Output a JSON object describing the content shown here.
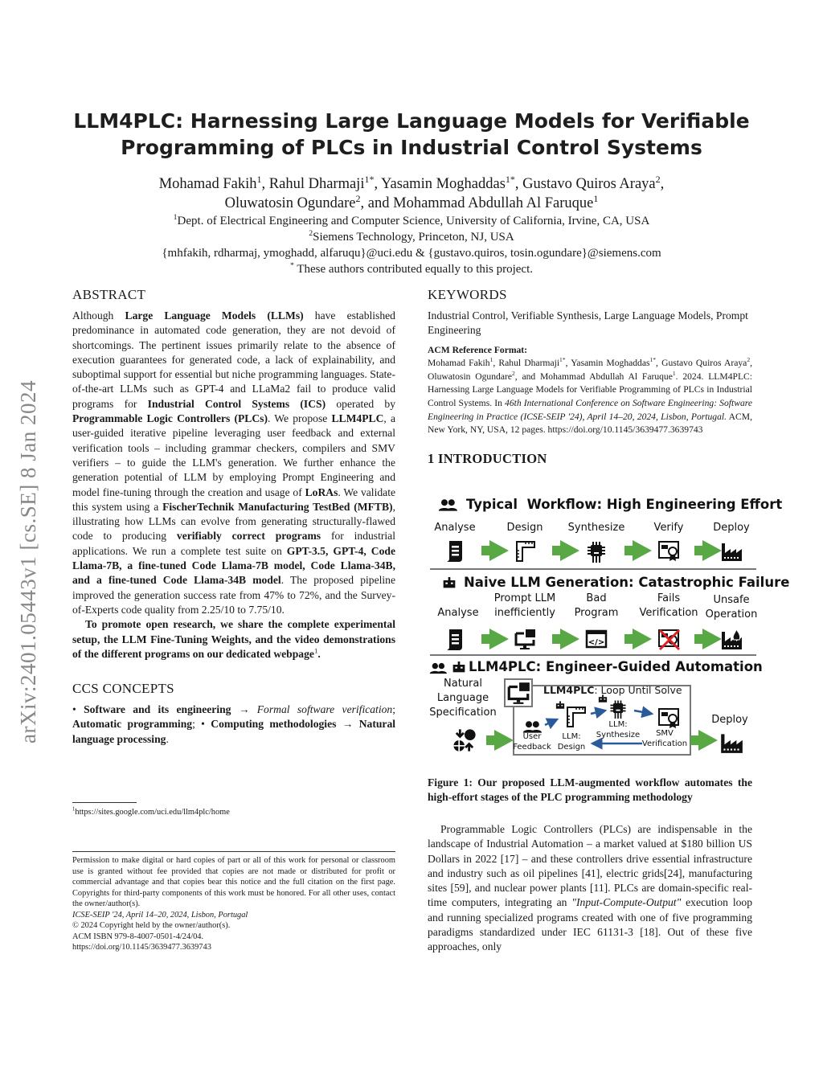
{
  "stamp": "arXiv:2401.05443v1  [cs.SE]  8 Jan 2024",
  "title_lines": [
    "LLM4PLC: Harnessing Large Language Models for Verifiable",
    "Programming of PLCs in Industrial Control Systems"
  ],
  "authors": [
    [
      [
        "Mohamad Fakih",
        ""
      ],
      [
        "1",
        "sup"
      ],
      [
        ", Rahul Dharmaji",
        ""
      ],
      [
        "1*",
        "sup"
      ],
      [
        ", Yasamin Moghaddas",
        ""
      ],
      [
        "1*",
        "sup"
      ],
      [
        ", Gustavo Quiros Araya",
        ""
      ],
      [
        "2",
        "sup"
      ],
      [
        ",",
        ""
      ]
    ],
    [
      [
        "Oluwatosin Ogundare",
        ""
      ],
      [
        "2",
        "sup"
      ],
      [
        ", and Mohammad Abdullah Al Faruque",
        ""
      ],
      [
        "1",
        "sup"
      ]
    ]
  ],
  "affiliations": [
    [
      [
        "1",
        "sup"
      ],
      [
        "Dept. of Electrical Engineering and Computer Science, University of California, Irvine, CA, USA",
        ""
      ]
    ],
    [
      [
        "2",
        "sup"
      ],
      [
        "Siemens Technology, Princeton, NJ, USA",
        ""
      ]
    ],
    [
      [
        "{mhfakih, rdharmaj, ymoghadd, alfaruqu}@uci.edu & {gustavo.quiros, tosin.ogundare}@siemens.com",
        ""
      ]
    ],
    [
      [
        "*",
        "sup"
      ],
      [
        " These authors contributed equally to this project.",
        ""
      ]
    ]
  ],
  "abstract": {
    "heading": "ABSTRACT",
    "p1": [
      [
        "Although ",
        ""
      ],
      [
        "Large Language Models (LLMs)",
        "b"
      ],
      [
        " have established predominance in automated code generation, they are not devoid of shortcomings. The pertinent issues primarily relate to the absence of execution guarantees for generated code, a lack of explainability, and suboptimal support for essential but niche programming languages. State-of-the-art LLMs such as GPT-4 and LLaMa2 fail to produce valid programs for ",
        ""
      ],
      [
        "Industrial Control Systems (ICS)",
        "b"
      ],
      [
        " operated by ",
        ""
      ],
      [
        "Programmable Logic Controllers (PLCs)",
        "b"
      ],
      [
        ". We propose ",
        ""
      ],
      [
        "LLM4PLC",
        "b"
      ],
      [
        ", a user-guided iterative pipeline leveraging user feedback and external verification tools – including grammar checkers, compilers and SMV verifiers – to guide the LLM's generation. We further enhance the generation potential of LLM by employing Prompt Engineering and model fine-tuning through the creation and usage of ",
        ""
      ],
      [
        "LoRAs",
        "b"
      ],
      [
        ". We validate this system using a ",
        ""
      ],
      [
        "FischerTechnik Manufacturing TestBed (MFTB)",
        "b"
      ],
      [
        ", illustrating how LLMs can evolve from generating structurally-flawed code to producing ",
        ""
      ],
      [
        "verifiably correct programs",
        "b"
      ],
      [
        " for industrial applications. We run a complete test suite on ",
        ""
      ],
      [
        "GPT-3.5, GPT-4, Code Llama-7B, a fine-tuned Code Llama-7B model, Code Llama-34B, and a fine-tuned Code Llama-34B model",
        "b"
      ],
      [
        ". The proposed pipeline improved the generation success rate from 47% to 72%, and the Survey-of-Experts code quality from 2.25/10 to 7.75/10.",
        ""
      ]
    ],
    "p2": [
      [
        "To promote open research, we share the complete experimental setup, the LLM Fine-Tuning Weights, and the video demonstrations of the different programs on our dedicated webpage",
        "b"
      ],
      [
        "1",
        "sup"
      ],
      [
        ".",
        "b"
      ]
    ]
  },
  "ccs": {
    "heading": "CCS CONCEPTS",
    "text": [
      [
        "• ",
        ""
      ],
      [
        "Software and its engineering",
        "b"
      ],
      [
        " → ",
        ""
      ],
      [
        "Formal software verification",
        "i"
      ],
      [
        "; ",
        ""
      ],
      [
        "Automatic programming",
        "b"
      ],
      [
        "; • ",
        ""
      ],
      [
        "Computing methodologies",
        "b"
      ],
      [
        " → ",
        ""
      ],
      [
        "Natural language processing",
        "b"
      ],
      [
        ".",
        ""
      ]
    ]
  },
  "footnote": [
    [
      "1",
      "sup"
    ],
    [
      "https://sites.google.com/uci.edu/llm4plc/home",
      ""
    ]
  ],
  "permission": [
    [
      [
        "Permission to make digital or hard copies of part or all of this work for personal or classroom use is granted without fee provided that copies are not made or distributed for profit or commercial advantage and that copies bear this notice and the full citation on the first page. Copyrights for third-party components of this work must be honored. For all other uses, contact the owner/author(s).",
        ""
      ]
    ],
    [
      [
        "ICSE-SEIP '24, April 14–20, 2024, Lisbon, Portugal",
        "i"
      ]
    ],
    [
      [
        "© 2024 Copyright held by the owner/author(s).",
        ""
      ]
    ],
    [
      [
        "ACM ISBN 979-8-4007-0501-4/24/04.",
        ""
      ]
    ],
    [
      [
        "https://doi.org/10.1145/3639477.3639743",
        ""
      ]
    ]
  ],
  "keywords": {
    "heading": "KEYWORDS",
    "text": [
      [
        "Industrial Control, Verifiable Synthesis, Large Language Models, Prompt Engineering",
        ""
      ]
    ]
  },
  "acm_ref": {
    "heading": "ACM Reference Format:",
    "text": [
      [
        "Mohamad Fakih",
        ""
      ],
      [
        "1",
        "sup"
      ],
      [
        ", Rahul Dharmaji",
        ""
      ],
      [
        "1*",
        "sup"
      ],
      [
        ", Yasamin Moghaddas",
        ""
      ],
      [
        "1*",
        "sup"
      ],
      [
        ", Gustavo Quiros Araya",
        ""
      ],
      [
        "2",
        "sup"
      ],
      [
        ", Oluwatosin Ogundare",
        ""
      ],
      [
        "2",
        "sup"
      ],
      [
        ", and Mohammad Abdullah Al Faruque",
        ""
      ],
      [
        "1",
        "sup"
      ],
      [
        ". 2024. LLM4PLC: Harnessing Large Language Models for Verifiable Programming of PLCs in Industrial Control Systems. In ",
        ""
      ],
      [
        "46th International Conference on Software Engineering: Software Engineering in Practice (ICSE-SEIP '24), April 14–20, 2024, Lisbon, Portugal.",
        "i"
      ],
      [
        " ACM, New York, NY, USA, 12 pages. https://doi.org/10.1145/3639477.3639743",
        ""
      ]
    ]
  },
  "intro": {
    "heading": "1   INTRODUCTION",
    "p1": [
      [
        "Programmable Logic Controllers (PLCs) are indispensable in the landscape of Industrial Automation – a market valued at $180 billion US Dollars in 2022 [17] – and these controllers drive essential infrastructure and industry such as oil pipelines [41], electric grids[24], manufacturing sites [59], and nuclear power plants [11]. PLCs are domain-specific real-time computers, integrating an ",
        ""
      ],
      [
        "\"Input-Compute-Output\"",
        "i"
      ],
      [
        " execution loop and running specialized programs created with one of five programming paradigms standardized under IEC 61131-3 [18]. Out of these five approaches, only",
        ""
      ]
    ]
  },
  "figure": {
    "row1": {
      "title": "Typical  Workflow: High Engineering Effort",
      "labels": [
        "Analyse",
        "Design",
        "Synthesize",
        "Verify",
        "Deploy"
      ],
      "icons": [
        "scroll-icon",
        "ruler-icon",
        "chip-icon",
        "certificate-icon",
        "factory-icon"
      ]
    },
    "row2": {
      "title": "Naive LLM Generation: Catastrophic Failure",
      "labels": [
        "Analyse",
        "Prompt LLM\ninefficiently",
        "Bad\nProgram",
        "Fails\nVerification",
        "Unsafe\nOperation"
      ],
      "icons": [
        "scroll-icon",
        "monitor-icon",
        "code-icon",
        "failed-certificate-icon",
        "burning-factory-icon"
      ]
    },
    "row3": {
      "title": "LLM4PLC: Engineer-Guided Automation",
      "spec": "Natural\nLanguage\nSpecification",
      "loop_title_bold": "LLM4PLC",
      "loop_title_rest": ": Loop Until Solve",
      "user": "User\nFeedback",
      "design": "LLM:\nDesign",
      "synth": "LLM:\nSynthesize",
      "smv": "SMV\nVerification",
      "deploy": "Deploy"
    },
    "colors": {
      "arrow": "#58a843",
      "loop_arrow": "#2a5a9a",
      "fail_cross": "#e02020"
    },
    "caption": "Figure 1: Our proposed LLM-augmented workflow automates the high-effort stages of the PLC programming methodology"
  }
}
